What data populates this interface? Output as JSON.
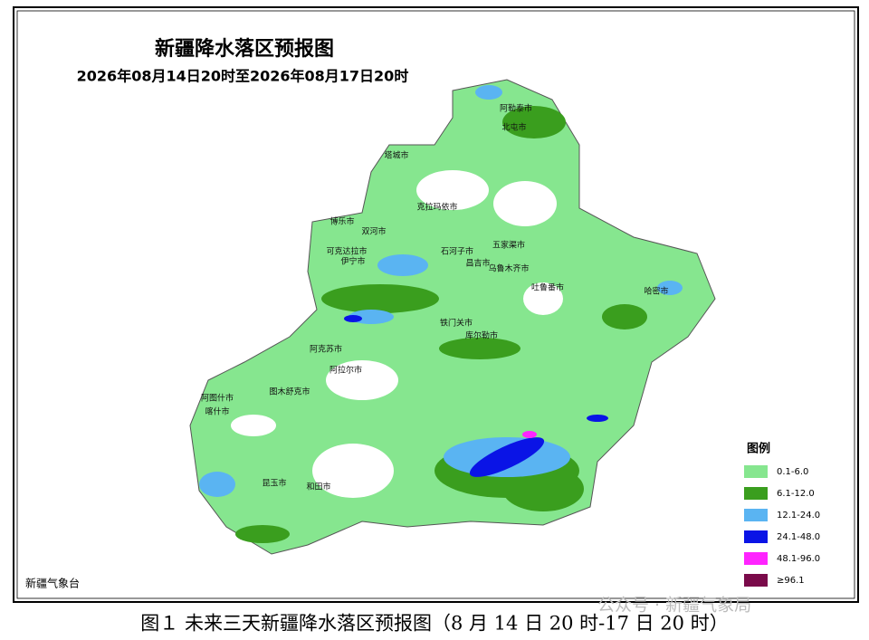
{
  "title": "新疆降水落区预报图",
  "subtitle": "2026年08月14日20时至2026年08月17日20时",
  "legend": {
    "title": "图例",
    "items": [
      {
        "label": "0.1-6.0",
        "color": "#86e68f"
      },
      {
        "label": "6.1-12.0",
        "color": "#3a9e1e"
      },
      {
        "label": "12.1-24.0",
        "color": "#5ab4f2"
      },
      {
        "label": "24.1-48.0",
        "color": "#0a14e6"
      },
      {
        "label": "48.1-96.0",
        "color": "#ff24ff"
      },
      {
        "label": "≥96.1",
        "color": "#7a0a4a"
      }
    ]
  },
  "cities": [
    "阿勒泰市",
    "北屯市",
    "塔城市",
    "克拉玛依市",
    "博乐市",
    "双河市",
    "石河子市",
    "五家渠市",
    "可克达拉市",
    "伊宁市",
    "昌吉市",
    "乌鲁木齐市",
    "吐鲁番市",
    "哈密市",
    "铁门关市",
    "库尔勒市",
    "阿克苏市",
    "阿拉尔市",
    "图木舒克市",
    "阿图什市",
    "喀什市",
    "昆玉市",
    "和田市"
  ],
  "agency": "新疆气象台",
  "caption": "图１ 未来三天新疆降水落区预报图（8 月 14 日 20 时-17 日 20 时）",
  "watermark": "公众号 · 新疆气象局"
}
